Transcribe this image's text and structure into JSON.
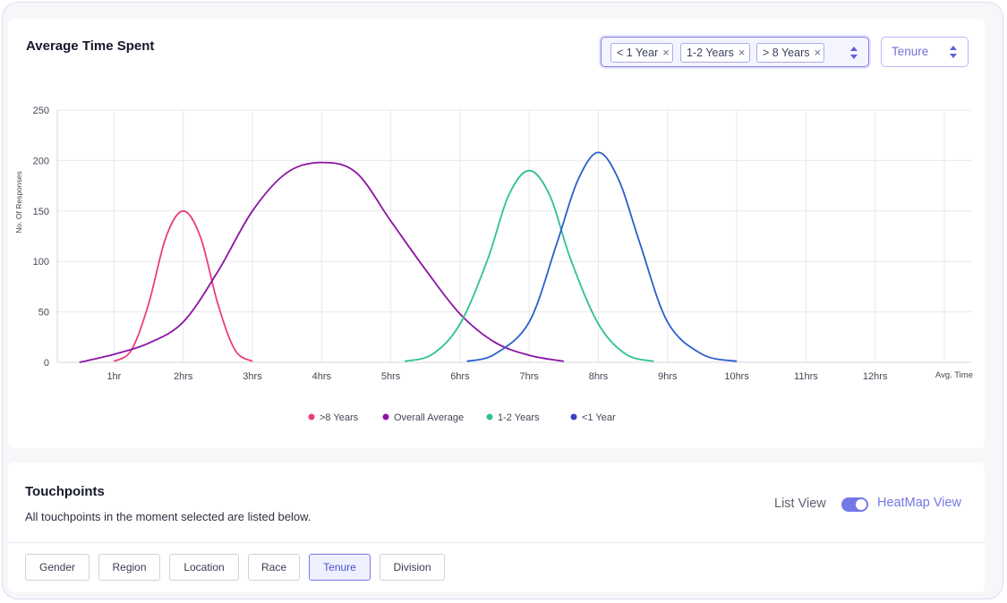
{
  "chart_card": {
    "title": "Average Time Spent",
    "filter_chips": [
      {
        "label": "< 1 Year"
      },
      {
        "label": "1-2 Years"
      },
      {
        "label": "> 8 Years"
      }
    ],
    "group_by_select": {
      "value": "Tenure"
    }
  },
  "chart_data": {
    "type": "line",
    "title": "",
    "xlabel": "Avg. Time",
    "ylabel": "No. Of Responses",
    "x_ticks": [
      "1hr",
      "2hrs",
      "3hrs",
      "4hrs",
      "5hrs",
      "6hrs",
      "7hrs",
      "8hrs",
      "9hrs",
      "10hrs",
      "11hrs",
      "12hrs"
    ],
    "y_ticks": [
      0,
      50,
      100,
      150,
      200,
      250
    ],
    "xlim": [
      0,
      13
    ],
    "ylim": [
      0,
      250
    ],
    "grid": true,
    "legend_position": "bottom",
    "series": [
      {
        "name": ">8 Years",
        "color": "#ec3d7d",
        "x": [
          1,
          1.25,
          1.5,
          1.75,
          2,
          2.25,
          2.5,
          2.75,
          3
        ],
        "y": [
          1,
          12,
          58,
          124,
          150,
          124,
          58,
          12,
          1
        ]
      },
      {
        "name": "Overall Average",
        "color": "#8c12a6",
        "x": [
          0.5,
          1,
          1.5,
          2,
          2.5,
          3,
          3.5,
          4,
          4.5,
          5,
          5.5,
          6,
          6.5,
          7,
          7.5
        ],
        "y": [
          0,
          8,
          19,
          40,
          90,
          150,
          188,
          198,
          188,
          140,
          92,
          48,
          20,
          7,
          1
        ]
      },
      {
        "name": "1-2 Years",
        "color": "#2fc28e",
        "x": [
          5.2,
          5.6,
          6,
          6.4,
          6.7,
          7,
          7.3,
          7.6,
          8,
          8.4,
          8.8
        ],
        "y": [
          1,
          8,
          38,
          102,
          165,
          190,
          165,
          102,
          38,
          8,
          1
        ]
      },
      {
        "name": "<1 Year",
        "color": "#2a5fcb",
        "x": [
          6.1,
          6.5,
          7,
          7.4,
          7.7,
          8,
          8.3,
          8.6,
          9,
          9.5,
          10
        ],
        "y": [
          1,
          8,
          40,
          118,
          180,
          208,
          180,
          118,
          40,
          8,
          1
        ]
      }
    ],
    "legend_marker_colors": [
      "#ec3d7d",
      "#8c12a6",
      "#2fc28e",
      "#3b3fc1"
    ]
  },
  "touchpoints": {
    "title": "Touchpoints",
    "subtitle": "All touchpoints in the moment selected are listed below.",
    "list_view_label": "List View",
    "heatmap_view_label": "HeatMap View",
    "toggle_on": true,
    "filters": [
      {
        "label": "Gender",
        "active": false
      },
      {
        "label": "Region",
        "active": false
      },
      {
        "label": "Location",
        "active": false
      },
      {
        "label": "Race",
        "active": false
      },
      {
        "label": "Tenure",
        "active": true
      },
      {
        "label": "Division",
        "active": false
      }
    ]
  }
}
